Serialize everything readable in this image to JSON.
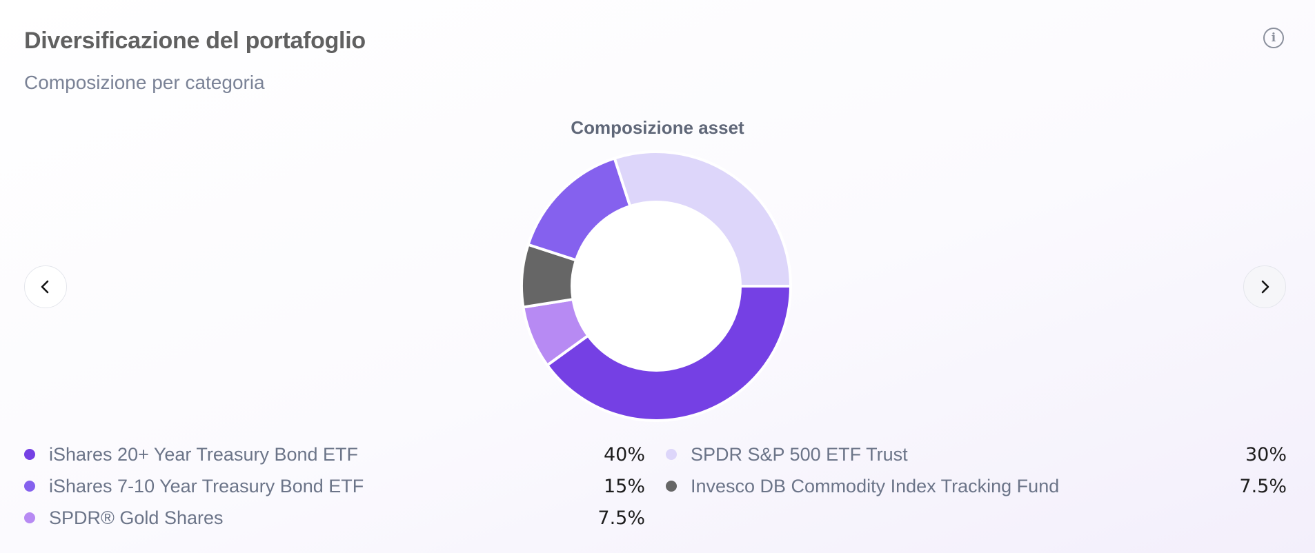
{
  "card": {
    "title": "Diversificazione del portafoglio",
    "subtitle": "Composizione per categoria",
    "info_icon": "info-icon",
    "prev_icon": "chevron-left-icon",
    "next_icon": "chevron-right-icon"
  },
  "chart_data": {
    "type": "pie",
    "variant": "donut",
    "title": "Composizione asset",
    "legend_position": "bottom",
    "slices": [
      {
        "label": "iShares 20+ Year Treasury Bond ETF",
        "value": 40,
        "value_label": "40%",
        "color": "#7540e4"
      },
      {
        "label": "SPDR® Gold Shares",
        "value": 7.5,
        "value_label": "7.5%",
        "color": "#b78af3"
      },
      {
        "label": "Invesco DB Commodity Index Tracking Fund",
        "value": 7.5,
        "value_label": "7.5%",
        "color": "#666666"
      },
      {
        "label": "iShares 7-10 Year Treasury Bond ETF",
        "value": 15,
        "value_label": "15%",
        "color": "#8561ee"
      },
      {
        "label": "SPDR S&P 500 ETF Trust",
        "value": 30,
        "value_label": "30%",
        "color": "#ddd6fa"
      }
    ],
    "legend": [
      {
        "label": "iShares 20+ Year Treasury Bond ETF",
        "value_label": "40%",
        "color": "#7540e4"
      },
      {
        "label": "SPDR S&P 500 ETF Trust",
        "value_label": "30%",
        "color": "#ddd6fa"
      },
      {
        "label": "iShares 7-10 Year Treasury Bond ETF",
        "value_label": "15%",
        "color": "#8561ee"
      },
      {
        "label": "Invesco DB Commodity Index Tracking Fund",
        "value_label": "7.5%",
        "color": "#666666"
      },
      {
        "label": "SPDR® Gold Shares",
        "value_label": "7.5%",
        "color": "#b78af3"
      }
    ]
  }
}
